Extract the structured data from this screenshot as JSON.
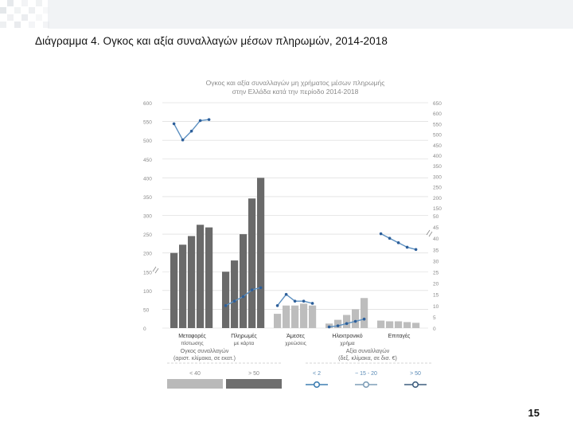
{
  "slide": {
    "title": "Διάγραμμα 4. Ογκος και αξία συναλλαγών μέσων πληρωμών, 2014-2018",
    "page_number": "15"
  },
  "chart_data": {
    "type": "bar",
    "title_line1": "Ογκος και αξία συναλλαγών μη χρήματος μέσων πληρωμής",
    "title_line2": "στην Ελλάδα κατά την περίοδο 2014-2018",
    "categories": [
      "Μεταφορές πίστωσης",
      "Πληρωμές με κάρτα",
      "Άμεσες χρεώσεις",
      "Ηλεκτρονικό χρήμα",
      "Επιταγές"
    ],
    "left_axis": {
      "ticks": [
        "0",
        "50",
        "100",
        "150",
        "200",
        "250",
        "300",
        "350",
        "400",
        "450",
        "500",
        "550",
        "600"
      ],
      "range": [
        0,
        600
      ]
    },
    "right_axis_lower": {
      "ticks": [
        "0",
        "5",
        "10",
        "15",
        "20",
        "25",
        "30",
        "35",
        "40",
        "45",
        "50"
      ],
      "range": [
        0,
        50
      ]
    },
    "right_axis_upper": {
      "ticks": [
        "150",
        "200",
        "250",
        "300",
        "350",
        "400",
        "450",
        "500",
        "550",
        "600",
        "650"
      ],
      "range": [
        150,
        650
      ]
    },
    "volume_bars": [
      {
        "category": "Μεταφορές πίστωσης",
        "values": [
          200,
          222,
          245,
          275,
          268
        ]
      },
      {
        "category": "Πληρωμές με κάρτα",
        "values": [
          150,
          180,
          250,
          345,
          400
        ]
      },
      {
        "category": "Άμεσες χρεώσεις",
        "values": [
          38,
          60,
          60,
          65,
          60
        ]
      },
      {
        "category": "Ηλεκτρονικό χρήμα",
        "values": [
          12,
          22,
          35,
          50,
          80
        ]
      },
      {
        "category": "Επιταγές",
        "values": [
          20,
          18,
          18,
          16,
          14
        ]
      }
    ],
    "value_lines": [
      {
        "category": "Μεταφορές πίστωσης",
        "axis": "upper",
        "values": [
          550,
          473,
          515,
          565,
          570
        ]
      },
      {
        "category": "Πληρωμές με κάρτα",
        "axis": "lower",
        "values": [
          10,
          12,
          14,
          17,
          18
        ]
      },
      {
        "category": "Άμεσες χρεώσεις",
        "axis": "lower",
        "values": [
          10,
          15,
          12,
          12,
          11
        ]
      },
      {
        "category": "Ηλεκτρονικό χρήμα",
        "axis": "lower",
        "values": [
          0.5,
          1,
          2,
          3,
          4
        ]
      },
      {
        "category": "Επιταγές",
        "axis": "lower",
        "values": [
          42,
          40,
          38,
          36,
          35
        ]
      }
    ],
    "legend": {
      "volume_title_line1": "Ογκος συναλλαγών",
      "volume_title_line2": "(αριστ. κλίμακα, σε εκατ.)",
      "volume_items": [
        "< 40",
        "> 50"
      ],
      "volume_colors": [
        "#b9b9b9",
        "#6e6e6e"
      ],
      "value_title_line1": "Αξία συναλλαγών",
      "value_title_line2": "(δεξ. κλίμακα, σε δισ. €)",
      "value_items": [
        "< 2",
        "~ 15 - 20",
        "> 50"
      ]
    },
    "colors": {
      "bar_light": "#bdbdbd",
      "bar_dark": "#6a6a6a",
      "line": "#5b8fc0",
      "marker": "#2d5f9a",
      "grid": "#e1e1e1",
      "axis_text": "#8a8a8a"
    }
  }
}
